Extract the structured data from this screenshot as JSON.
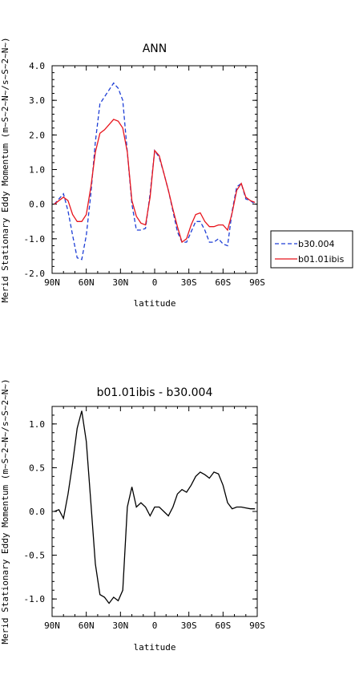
{
  "chart_data": [
    {
      "type": "line",
      "title": "ANN",
      "xlabel": "latitude",
      "ylabel": "Merid Stationary Eddy Momentum (m~S~2~N~/s~S~2~N~)",
      "xlim": [
        90,
        -90
      ],
      "ylim": [
        -2.0,
        4.0
      ],
      "x_ticks": [
        "90N",
        "60N",
        "30N",
        "0",
        "30S",
        "60S",
        "90S"
      ],
      "y_ticks": [
        "-2.0",
        "-1.0",
        "0.0",
        "1.0",
        "2.0",
        "3.0",
        "4.0"
      ],
      "legend_position": "right",
      "x": [
        88,
        84,
        80,
        76,
        72,
        68,
        64,
        60,
        56,
        52,
        48,
        44,
        40,
        36,
        32,
        28,
        24,
        20,
        16,
        12,
        8,
        4,
        0,
        -4,
        -8,
        -12,
        -16,
        -20,
        -24,
        -28,
        -32,
        -36,
        -40,
        -44,
        -48,
        -52,
        -56,
        -60,
        -64,
        -68,
        -72,
        -76,
        -80,
        -84,
        -88
      ],
      "series": [
        {
          "name": "b30.004",
          "color": "#1f3fd6",
          "style": "dashed",
          "values": [
            0.0,
            0.15,
            0.3,
            -0.2,
            -0.9,
            -1.55,
            -1.6,
            -0.9,
            0.3,
            1.8,
            2.9,
            3.1,
            3.3,
            3.5,
            3.35,
            3.0,
            1.5,
            0.0,
            -0.75,
            -0.75,
            -0.7,
            0.3,
            1.55,
            1.35,
            0.9,
            0.4,
            -0.2,
            -0.8,
            -1.1,
            -1.1,
            -0.8,
            -0.5,
            -0.5,
            -0.75,
            -1.1,
            -1.1,
            -1.0,
            -1.15,
            -1.2,
            -0.2,
            0.5,
            0.6,
            0.15,
            0.1,
            0.0
          ]
        },
        {
          "name": "b01.01ibis",
          "color": "#e8141c",
          "style": "solid",
          "values": [
            0.0,
            0.1,
            0.2,
            0.1,
            -0.3,
            -0.5,
            -0.5,
            -0.3,
            0.5,
            1.5,
            2.05,
            2.15,
            2.3,
            2.45,
            2.4,
            2.2,
            1.5,
            0.1,
            -0.35,
            -0.55,
            -0.6,
            0.2,
            1.55,
            1.4,
            0.9,
            0.4,
            -0.15,
            -0.65,
            -1.1,
            -1.0,
            -0.6,
            -0.3,
            -0.25,
            -0.5,
            -0.65,
            -0.65,
            -0.6,
            -0.6,
            -0.75,
            -0.25,
            0.4,
            0.6,
            0.2,
            0.1,
            0.05
          ]
        }
      ]
    },
    {
      "type": "line",
      "title": "b01.01ibis - b30.004",
      "xlabel": "latitude",
      "ylabel": "Merid Stationary Eddy Momentum (m~S~2~N~/s~S~2~N~)",
      "xlim": [
        90,
        -90
      ],
      "ylim": [
        -1.2,
        1.2
      ],
      "x_ticks": [
        "90N",
        "60N",
        "30N",
        "0",
        "30S",
        "60S",
        "90S"
      ],
      "y_ticks": [
        "-1.0",
        "-0.5",
        "0.0",
        "0.5",
        "1.0"
      ],
      "x": [
        88,
        84,
        80,
        76,
        72,
        68,
        64,
        60,
        56,
        52,
        48,
        44,
        40,
        36,
        32,
        28,
        24,
        20,
        16,
        12,
        8,
        4,
        0,
        -4,
        -8,
        -12,
        -16,
        -20,
        -24,
        -28,
        -32,
        -36,
        -40,
        -44,
        -48,
        -52,
        -56,
        -60,
        -64,
        -68,
        -72,
        -76,
        -80,
        -84,
        -88
      ],
      "series": [
        {
          "color": "#000000",
          "style": "solid",
          "values": [
            0.0,
            0.02,
            -0.08,
            0.2,
            0.55,
            0.95,
            1.15,
            0.8,
            0.1,
            -0.6,
            -0.95,
            -0.98,
            -1.05,
            -0.98,
            -1.02,
            -0.9,
            0.05,
            0.28,
            0.05,
            0.1,
            0.05,
            -0.05,
            0.05,
            0.05,
            0.0,
            -0.05,
            0.05,
            0.2,
            0.25,
            0.22,
            0.3,
            0.4,
            0.45,
            0.42,
            0.38,
            0.45,
            0.43,
            0.3,
            0.1,
            0.03,
            0.05,
            0.05,
            0.04,
            0.03,
            0.03
          ]
        }
      ]
    }
  ]
}
